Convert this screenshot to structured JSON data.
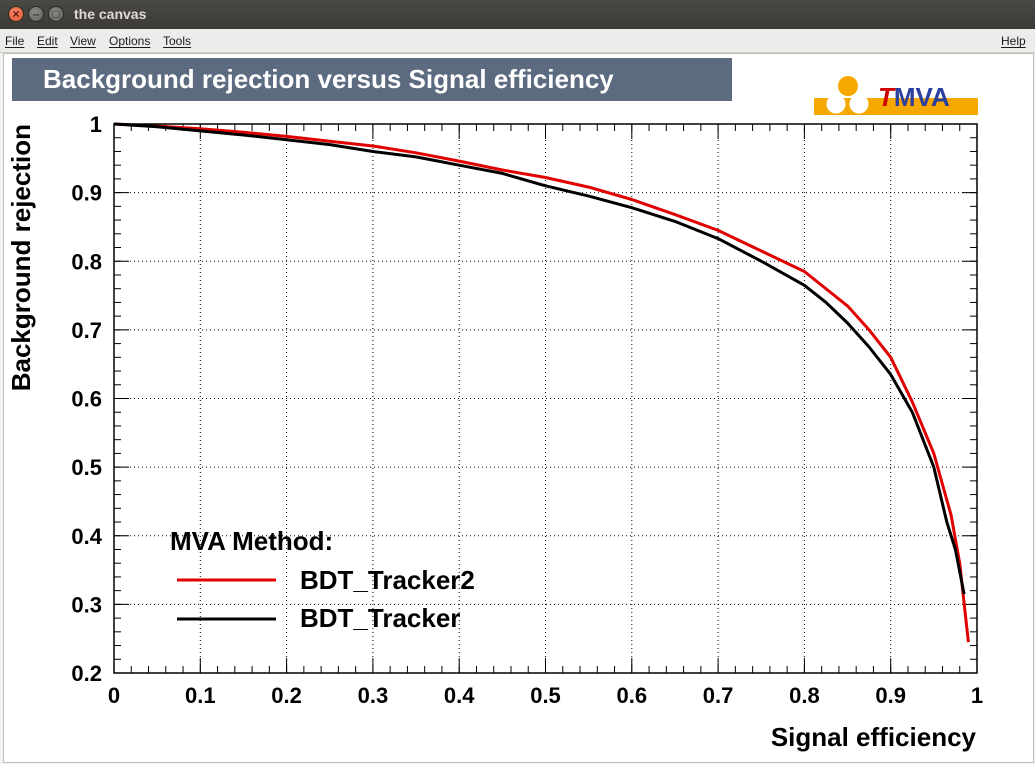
{
  "window": {
    "title": "the canvas"
  },
  "menu": {
    "file": "File",
    "edit": "Edit",
    "view": "View",
    "options": "Options",
    "tools": "Tools",
    "help": "Help"
  },
  "logo": {
    "first": "T",
    "rest": "MVA",
    "accent": "#cc0000",
    "main": "#2b3fa0",
    "bar": "#f5a800"
  },
  "chart_data": {
    "type": "line",
    "title": "Background rejection versus Signal efficiency",
    "xlabel": "Signal efficiency",
    "ylabel": "Background rejection",
    "xlim": [
      0,
      1
    ],
    "ylim": [
      0.2,
      1
    ],
    "x_ticks": [
      "0",
      "0.1",
      "0.2",
      "0.3",
      "0.4",
      "0.5",
      "0.6",
      "0.7",
      "0.8",
      "0.9",
      "1"
    ],
    "y_ticks": [
      "0.2",
      "0.3",
      "0.4",
      "0.5",
      "0.6",
      "0.7",
      "0.8",
      "0.9",
      "1"
    ],
    "grid": true,
    "legend": {
      "header": "MVA Method:",
      "placement": "bottom-left"
    },
    "series": [
      {
        "name": "BDT_Tracker2",
        "color": "#e00000",
        "x": [
          0,
          0.05,
          0.1,
          0.15,
          0.2,
          0.25,
          0.3,
          0.35,
          0.4,
          0.45,
          0.5,
          0.55,
          0.6,
          0.65,
          0.7,
          0.75,
          0.8,
          0.85,
          0.875,
          0.9,
          0.925,
          0.95,
          0.97,
          0.98,
          0.99
        ],
        "values": [
          1.0,
          0.997,
          0.993,
          0.988,
          0.982,
          0.975,
          0.968,
          0.958,
          0.946,
          0.933,
          0.922,
          0.908,
          0.89,
          0.868,
          0.845,
          0.815,
          0.785,
          0.735,
          0.7,
          0.66,
          0.595,
          0.52,
          0.43,
          0.36,
          0.245
        ]
      },
      {
        "name": "BDT_Tracker",
        "color": "#000000",
        "x": [
          0,
          0.05,
          0.1,
          0.15,
          0.2,
          0.25,
          0.3,
          0.35,
          0.4,
          0.45,
          0.5,
          0.55,
          0.6,
          0.65,
          0.7,
          0.75,
          0.8,
          0.825,
          0.85,
          0.875,
          0.9,
          0.925,
          0.95,
          0.965,
          0.975,
          0.985
        ],
        "values": [
          1.0,
          0.996,
          0.99,
          0.984,
          0.977,
          0.97,
          0.96,
          0.952,
          0.94,
          0.928,
          0.91,
          0.895,
          0.878,
          0.858,
          0.833,
          0.8,
          0.765,
          0.74,
          0.71,
          0.675,
          0.635,
          0.58,
          0.5,
          0.42,
          0.38,
          0.315
        ]
      }
    ]
  }
}
